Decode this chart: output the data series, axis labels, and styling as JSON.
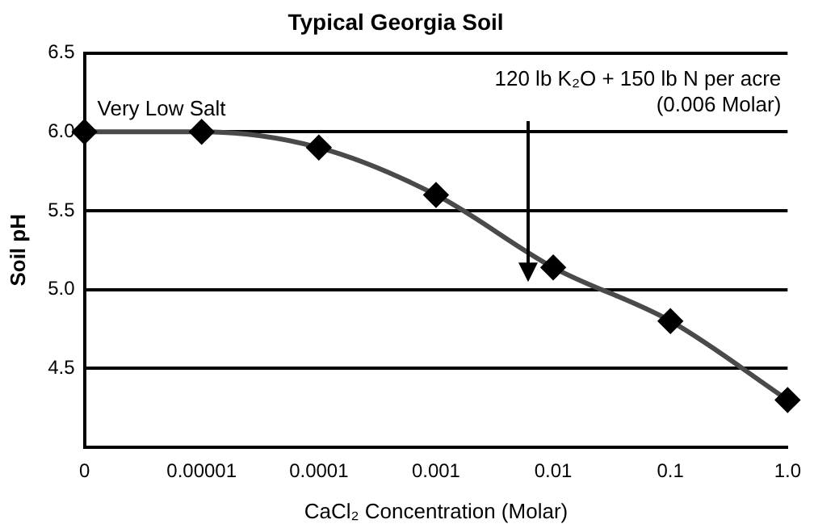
{
  "chart_data": {
    "type": "line",
    "title": "Typical Georgia Soil",
    "xlabel": "CaCl₂ Concentration (Molar)",
    "ylabel": "Soil pH",
    "categories": [
      "0",
      "0.00001",
      "0.0001",
      "0.001",
      "0.01",
      "0.1",
      "1.0"
    ],
    "series": [
      {
        "color": "#4a4a4a",
        "values": [
          6.0,
          6.0,
          5.9,
          5.6,
          5.14,
          4.8,
          4.3
        ]
      }
    ],
    "ylim": [
      4.0,
      6.5
    ],
    "yticks": [
      {
        "value": 4.5,
        "label": "4.5"
      },
      {
        "value": 5.0,
        "label": "5.0"
      },
      {
        "value": 5.5,
        "label": "5.5"
      },
      {
        "value": 6.0,
        "label": "6.0"
      },
      {
        "value": 6.5,
        "label": "6.5"
      }
    ],
    "grid": "y",
    "legend": false,
    "marker": "diamond",
    "line_style": "solid",
    "annotations": [
      "Very Low Salt",
      "120 lb K₂O + 150 lb N per acre",
      "(0.006 Molar)"
    ]
  }
}
